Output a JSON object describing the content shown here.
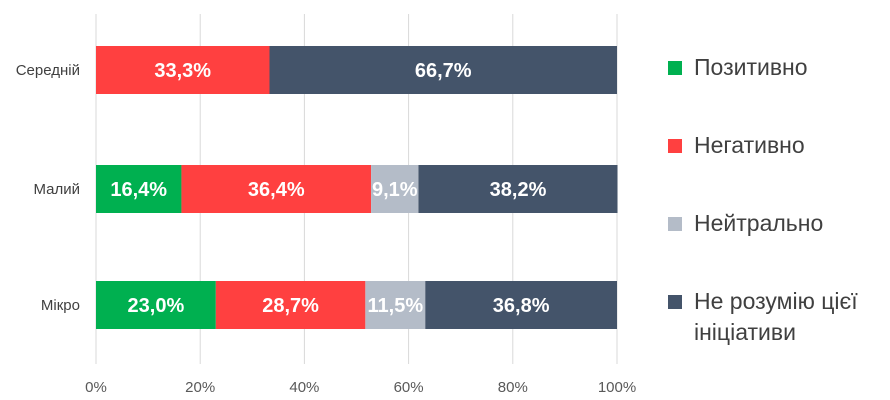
{
  "chart_data": {
    "type": "bar",
    "orientation": "horizontal",
    "stacked": true,
    "categories": [
      "Середній",
      "Малий",
      "Мікро"
    ],
    "series": [
      {
        "name": "Позитивно",
        "color": "#00b050",
        "values": [
          0,
          16.4,
          23.0
        ],
        "labels": [
          "",
          "16,4%",
          "23,0%"
        ]
      },
      {
        "name": "Негативно",
        "color": "#ff4040",
        "values": [
          33.3,
          36.4,
          28.7
        ],
        "labels": [
          "33,3%",
          "36,4%",
          "28,7%"
        ]
      },
      {
        "name": "Нейтрально",
        "color": "#b4bcc8",
        "values": [
          0,
          9.1,
          11.5
        ],
        "labels": [
          "",
          "9,1%",
          "11,5%"
        ]
      },
      {
        "name": "Не розумію цієї ініціативи",
        "color": "#44546a",
        "values": [
          66.7,
          38.2,
          36.8
        ],
        "labels": [
          "66,7%",
          "38,2%",
          "36,8%"
        ]
      }
    ],
    "x_ticks": [
      "0%",
      "20%",
      "40%",
      "60%",
      "80%",
      "100%"
    ],
    "xlim": [
      0,
      100
    ],
    "grid": true,
    "legend_position": "right",
    "title": "",
    "xlabel": "",
    "ylabel": ""
  },
  "legend": {
    "items": [
      {
        "label": "Позитивно",
        "color": "#00b050"
      },
      {
        "label": "Негативно",
        "color": "#ff4040"
      },
      {
        "label": "Нейтрально",
        "color": "#b4bcc8"
      },
      {
        "label": "Не розумію цієї ініціативи",
        "color": "#44546a"
      }
    ]
  }
}
